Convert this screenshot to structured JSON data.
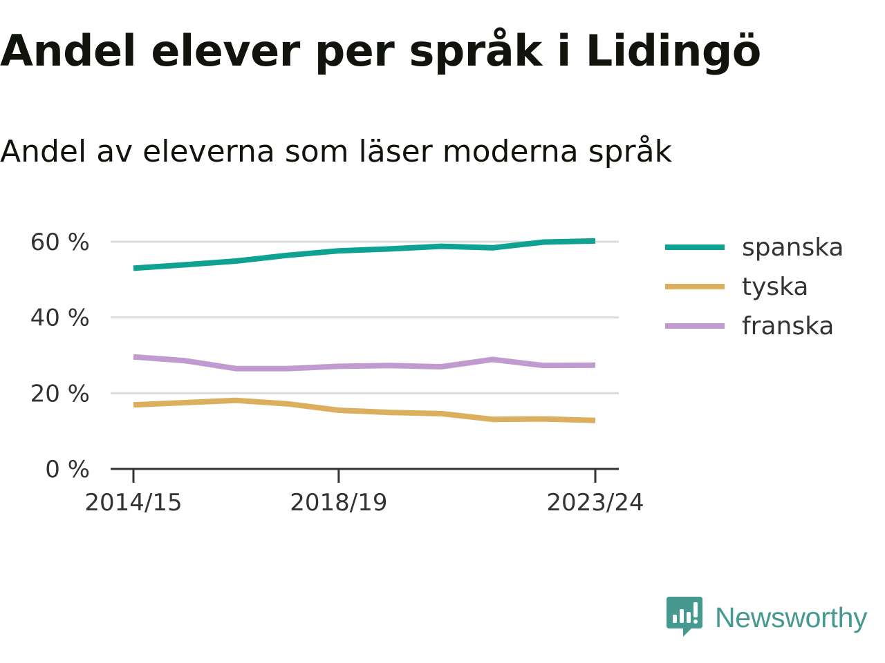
{
  "header": {
    "title": "Andel elever per språk i Lidingö",
    "subtitle": "Andel av eleverna som läser moderna språk"
  },
  "branding": {
    "logo_text": "Newsworthy",
    "logo_icon": "newsworthy-chart-bubble-icon",
    "logo_color": "#45998e"
  },
  "chart_data": {
    "type": "line",
    "title": "Andel elever per språk i Lidingö",
    "subtitle": "Andel av eleverna som läser moderna språk",
    "xlabel": "",
    "ylabel": "",
    "x": [
      "2014/15",
      "2015/16",
      "2016/17",
      "2017/18",
      "2018/19",
      "2019/20",
      "2020/21",
      "2021/22",
      "2022/23",
      "2023/24"
    ],
    "x_tick_labels": [
      "2014/15",
      "2018/19",
      "2023/24"
    ],
    "y_ticks": [
      0,
      20,
      40,
      60
    ],
    "y_tick_labels": [
      "0 %",
      "20 %",
      "40 %",
      "60 %"
    ],
    "ylim": [
      0,
      60
    ],
    "grid": true,
    "legend_placement": "right",
    "series": [
      {
        "name": "spanska",
        "color": "#0fa191",
        "values": [
          53,
          53.9,
          54.9,
          56.4,
          57.6,
          58.1,
          58.8,
          58.4,
          59.9,
          60.2
        ]
      },
      {
        "name": "tyska",
        "color": "#dcaf5f",
        "values": [
          16.9,
          17.5,
          18.1,
          17.2,
          15.5,
          14.9,
          14.6,
          13.1,
          13.2,
          12.8
        ]
      },
      {
        "name": "franska",
        "color": "#c19bd0",
        "values": [
          29.6,
          28.6,
          26.5,
          26.5,
          27.1,
          27.3,
          27.0,
          28.9,
          27.3,
          27.4
        ]
      }
    ]
  }
}
